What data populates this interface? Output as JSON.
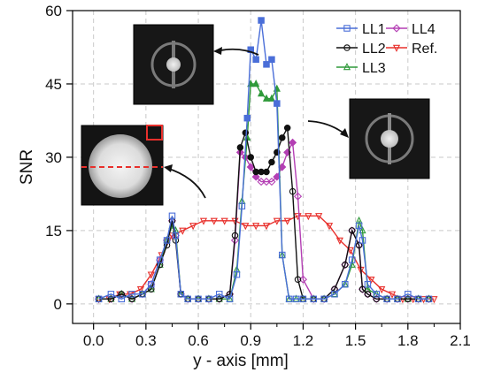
{
  "chart_data": {
    "type": "line",
    "xlabel": "y - axis [mm]",
    "ylabel": "SNR",
    "xlim": [
      -0.12,
      2.1
    ],
    "ylim": [
      -4,
      60
    ],
    "xticks": [
      "0.0",
      "0.3",
      "0.6",
      "0.9",
      "1.2",
      "1.5",
      "1.8",
      "2.1"
    ],
    "yticks": [
      "0",
      "15",
      "30",
      "45",
      "60"
    ],
    "grid": true,
    "legend_position": "top-right",
    "legend": [
      {
        "label": "LL1",
        "series": 0
      },
      {
        "label": "LL4",
        "series": 3
      },
      {
        "label": "LL2",
        "series": 1
      },
      {
        "label": "Ref.",
        "series": 4
      },
      {
        "label": "LL3",
        "series": 2
      }
    ],
    "series": [
      {
        "name": "LL1",
        "color": "#4a6ed8",
        "marker": "square",
        "x": [
          0.03,
          0.1,
          0.16,
          0.22,
          0.28,
          0.33,
          0.38,
          0.42,
          0.45,
          0.47,
          0.5,
          0.54,
          0.6,
          0.66,
          0.72,
          0.78,
          0.82,
          0.85,
          0.88,
          0.9,
          0.93,
          0.96,
          0.99,
          1.02,
          1.05,
          1.08,
          1.12,
          1.16,
          1.2,
          1.26,
          1.32,
          1.38,
          1.44,
          1.48,
          1.52,
          1.54,
          1.57,
          1.62,
          1.68,
          1.74,
          1.8,
          1.86,
          1.92
        ],
        "y": [
          1,
          2,
          1,
          2,
          2,
          4,
          9,
          13,
          18,
          14,
          2,
          1,
          1,
          1,
          2,
          1,
          6,
          20,
          38,
          52,
          50,
          58,
          49,
          50,
          41,
          10,
          1,
          1,
          1,
          1,
          1,
          2,
          4,
          9,
          16,
          13,
          4,
          2,
          1,
          1,
          2,
          1,
          1
        ]
      },
      {
        "name": "LL2",
        "color": "#111111",
        "marker": "circle",
        "x": [
          0.03,
          0.1,
          0.16,
          0.22,
          0.28,
          0.33,
          0.38,
          0.42,
          0.45,
          0.47,
          0.5,
          0.54,
          0.6,
          0.66,
          0.72,
          0.78,
          0.81,
          0.84,
          0.87,
          0.9,
          0.93,
          0.96,
          0.99,
          1.02,
          1.05,
          1.08,
          1.11,
          1.14,
          1.17,
          1.2,
          1.26,
          1.32,
          1.38,
          1.44,
          1.48,
          1.52,
          1.54,
          1.57,
          1.62,
          1.68,
          1.74,
          1.8,
          1.86,
          1.92
        ],
        "y": [
          1,
          1,
          2,
          1,
          2,
          3,
          8,
          12,
          17,
          13,
          2,
          1,
          1,
          1,
          1,
          2,
          14,
          32,
          35,
          30,
          27,
          27,
          27,
          29,
          31,
          34,
          36,
          23,
          5,
          1,
          1,
          1,
          3,
          8,
          15,
          12,
          3,
          2,
          1,
          1,
          1,
          1,
          1,
          1
        ]
      },
      {
        "name": "LL3",
        "color": "#2f9a3a",
        "marker": "triangle",
        "x": [
          0.03,
          0.1,
          0.16,
          0.22,
          0.28,
          0.33,
          0.38,
          0.42,
          0.45,
          0.47,
          0.5,
          0.54,
          0.6,
          0.66,
          0.72,
          0.78,
          0.82,
          0.85,
          0.88,
          0.9,
          0.93,
          0.96,
          0.99,
          1.02,
          1.05,
          1.08,
          1.12,
          1.16,
          1.2,
          1.26,
          1.32,
          1.38,
          1.44,
          1.48,
          1.52,
          1.54,
          1.57,
          1.62,
          1.68,
          1.74,
          1.8,
          1.86,
          1.92
        ],
        "y": [
          1,
          1,
          2,
          1,
          2,
          3,
          8,
          13,
          16,
          15,
          2,
          1,
          1,
          1,
          1,
          1,
          7,
          21,
          34,
          45,
          45,
          43,
          42,
          42,
          44,
          10,
          1,
          1,
          1,
          1,
          1,
          2,
          4,
          8,
          17,
          15,
          3,
          2,
          1,
          1,
          1,
          1,
          1
        ]
      },
      {
        "name": "LL4",
        "color": "#b43fb4",
        "marker": "diamond",
        "x": [
          0.03,
          0.1,
          0.16,
          0.22,
          0.28,
          0.33,
          0.38,
          0.42,
          0.45,
          0.47,
          0.5,
          0.54,
          0.6,
          0.66,
          0.72,
          0.78,
          0.81,
          0.84,
          0.87,
          0.9,
          0.93,
          0.96,
          0.99,
          1.02,
          1.05,
          1.08,
          1.11,
          1.14,
          1.17,
          1.2,
          1.26,
          1.32,
          1.38,
          1.44,
          1.48,
          1.52,
          1.54,
          1.57,
          1.62,
          1.68,
          1.74,
          1.8,
          1.86,
          1.92
        ],
        "y": [
          1,
          1,
          2,
          1,
          2,
          4,
          9,
          13,
          17,
          14,
          2,
          1,
          1,
          1,
          1,
          2,
          13,
          31,
          30,
          28,
          26,
          25,
          25,
          25,
          26,
          28,
          31,
          33,
          22,
          5,
          1,
          1,
          3,
          8,
          15,
          12,
          3,
          2,
          1,
          1,
          1,
          1,
          1,
          1
        ]
      },
      {
        "name": "Ref.",
        "color": "#e8302c",
        "marker": "triangle-down",
        "x": [
          0.03,
          0.09,
          0.15,
          0.21,
          0.27,
          0.33,
          0.39,
          0.45,
          0.51,
          0.57,
          0.63,
          0.69,
          0.75,
          0.81,
          0.87,
          0.93,
          0.99,
          1.05,
          1.11,
          1.17,
          1.23,
          1.29,
          1.35,
          1.41,
          1.47,
          1.53,
          1.59,
          1.65,
          1.71,
          1.77,
          1.83,
          1.89,
          1.95
        ],
        "y": [
          1,
          1,
          2,
          2,
          3,
          6,
          10,
          14,
          15,
          16,
          17,
          17,
          17,
          17,
          16,
          16,
          16,
          17,
          17,
          18,
          18,
          18,
          16,
          13,
          11,
          7,
          5,
          3,
          2,
          1,
          1,
          1,
          1
        ]
      }
    ]
  },
  "annotations": {
    "images": [
      {
        "name": "ll1-phantom-image"
      },
      {
        "name": "ll2-phantom-image"
      },
      {
        "name": "reference-phantom-image"
      }
    ]
  }
}
